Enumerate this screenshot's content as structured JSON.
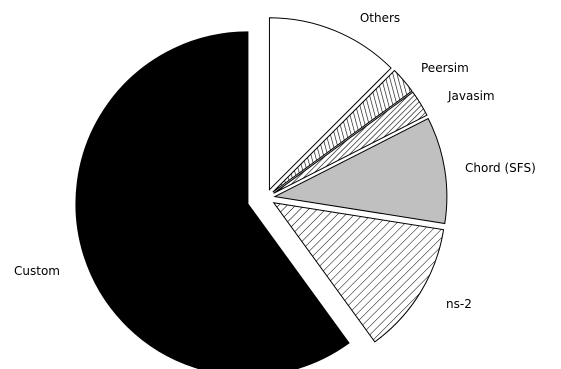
{
  "chart_data": {
    "type": "pie",
    "title": "",
    "exploded": true,
    "start_angle_deg": 90,
    "direction": "clockwise",
    "slices": [
      {
        "label": "Others",
        "value": 12.5,
        "fill": "white"
      },
      {
        "label": "Peersim",
        "value": 2.5,
        "fill": "hatch-vertical"
      },
      {
        "label": "Javasim",
        "value": 2.5,
        "fill": "hatch-diagonal"
      },
      {
        "label": "Chord (SFS)",
        "value": 10.0,
        "fill": "#c0c0c0"
      },
      {
        "label": "ns-2",
        "value": 12.5,
        "fill": "hatch-diagonal-wide"
      },
      {
        "label": "Custom",
        "value": 60.0,
        "fill": "#000000"
      }
    ]
  }
}
